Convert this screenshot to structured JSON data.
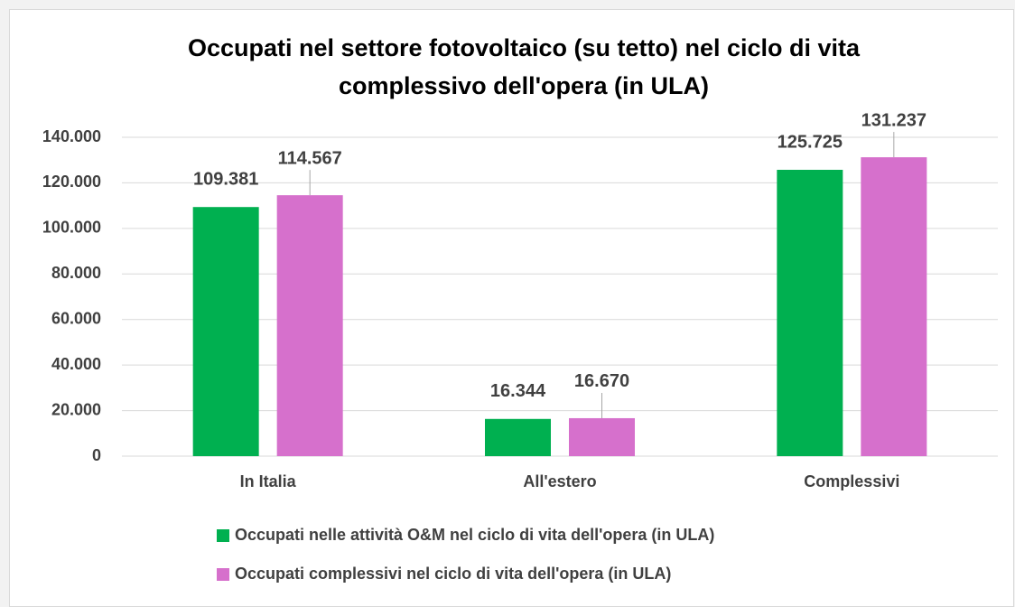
{
  "chart_data": {
    "type": "bar",
    "title": [
      "Occupati nel settore fotovoltaico (su tetto) nel ciclo di vita",
      "complessivo dell'opera (in ULA)"
    ],
    "categories": [
      "In Italia",
      "All'estero",
      "Complessivi"
    ],
    "series": [
      {
        "name": "Occupati nelle attività O&M nel ciclo di vita dell'opera (in ULA)",
        "color": "#00b050",
        "values": [
          109381,
          16344,
          125725
        ],
        "value_labels": [
          "109.381",
          "16.344",
          "125.725"
        ]
      },
      {
        "name": "Occupati complessivi nel ciclo di vita dell'opera (in ULA)",
        "color": "#d670cc",
        "values": [
          114567,
          16670,
          131237
        ],
        "value_labels": [
          "114.567",
          "16.670",
          "131.237"
        ]
      }
    ],
    "ylim": [
      0,
      140000
    ],
    "yticks": [
      0,
      {
        "value": 20000,
        "label": "20.000"
      },
      {
        "value": 40000,
        "label": "40.000"
      },
      {
        "value": 60000,
        "label": "60.000"
      },
      {
        "value": 80000,
        "label": "80.000"
      },
      {
        "value": 100000,
        "label": "100.000"
      },
      {
        "value": 120000,
        "label": "120.000"
      },
      {
        "value": 140000,
        "label": "140.000"
      }
    ],
    "grid": true,
    "legend": "bottom"
  }
}
